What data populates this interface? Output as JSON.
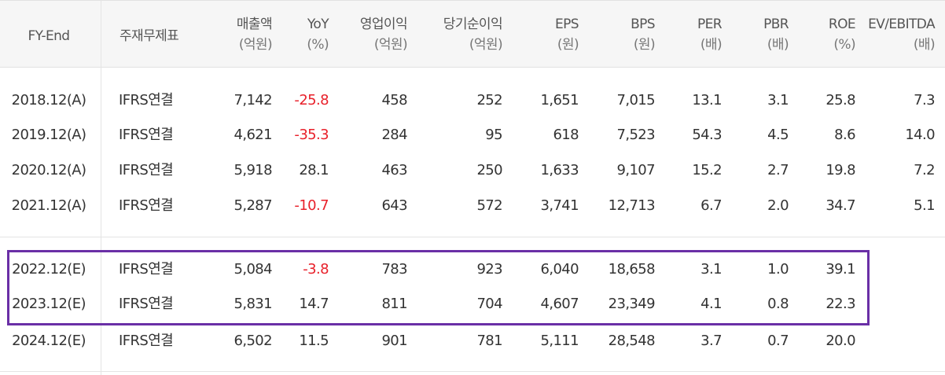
{
  "headers": [
    {
      "key": "fy",
      "label": "FY-End",
      "unit": ""
    },
    {
      "key": "basis",
      "label": "주재무제표",
      "unit": ""
    },
    {
      "key": "sales",
      "label": "매출액",
      "unit": "(억원)"
    },
    {
      "key": "yoy",
      "label": "YoY",
      "unit": "(%)"
    },
    {
      "key": "op",
      "label": "영업이익",
      "unit": "(억원)"
    },
    {
      "key": "net",
      "label": "당기순이익",
      "unit": "(억원)"
    },
    {
      "key": "eps",
      "label": "EPS",
      "unit": "(원)"
    },
    {
      "key": "bps",
      "label": "BPS",
      "unit": "(원)"
    },
    {
      "key": "per",
      "label": "PER",
      "unit": "(배)"
    },
    {
      "key": "pbr",
      "label": "PBR",
      "unit": "(배)"
    },
    {
      "key": "roe",
      "label": "ROE",
      "unit": "(%)"
    },
    {
      "key": "ev",
      "label": "EV/EBITDA",
      "unit": "(배)"
    }
  ],
  "rows": [
    {
      "fy": "2018.12(A)",
      "basis": "IFRS연결",
      "sales": "7,142",
      "yoy": "-25.8",
      "op": "458",
      "net": "252",
      "eps": "1,651",
      "bps": "7,015",
      "per": "13.1",
      "pbr": "3.1",
      "roe": "25.8",
      "ev": "7.3"
    },
    {
      "fy": "2019.12(A)",
      "basis": "IFRS연결",
      "sales": "4,621",
      "yoy": "-35.3",
      "op": "284",
      "net": "95",
      "eps": "618",
      "bps": "7,523",
      "per": "54.3",
      "pbr": "4.5",
      "roe": "8.6",
      "ev": "14.0"
    },
    {
      "fy": "2020.12(A)",
      "basis": "IFRS연결",
      "sales": "5,918",
      "yoy": "28.1",
      "op": "463",
      "net": "250",
      "eps": "1,633",
      "bps": "9,107",
      "per": "15.2",
      "pbr": "2.7",
      "roe": "19.8",
      "ev": "7.2"
    },
    {
      "fy": "2021.12(A)",
      "basis": "IFRS연결",
      "sales": "5,287",
      "yoy": "-10.7",
      "op": "643",
      "net": "572",
      "eps": "3,741",
      "bps": "12,713",
      "per": "6.7",
      "pbr": "2.0",
      "roe": "34.7",
      "ev": "5.1"
    },
    {
      "fy": "2022.12(E)",
      "basis": "IFRS연결",
      "sales": "5,084",
      "yoy": "-3.8",
      "op": "783",
      "net": "923",
      "eps": "6,040",
      "bps": "18,658",
      "per": "3.1",
      "pbr": "1.0",
      "roe": "39.1",
      "ev": ""
    },
    {
      "fy": "2023.12(E)",
      "basis": "IFRS연결",
      "sales": "5,831",
      "yoy": "14.7",
      "op": "811",
      "net": "704",
      "eps": "4,607",
      "bps": "23,349",
      "per": "4.1",
      "pbr": "0.8",
      "roe": "22.3",
      "ev": ""
    },
    {
      "fy": "2024.12(E)",
      "basis": "IFRS연결",
      "sales": "6,502",
      "yoy": "11.5",
      "op": "901",
      "net": "781",
      "eps": "5,111",
      "bps": "28,548",
      "per": "3.7",
      "pbr": "0.7",
      "roe": "20.0",
      "ev": ""
    }
  ],
  "highlighted_rows": [
    "2022.12(E)",
    "2023.12(E)"
  ],
  "colors": {
    "negative": "#e8202a",
    "highlight_border": "#6a2fa6",
    "header_bg": "#f6f6f6"
  }
}
